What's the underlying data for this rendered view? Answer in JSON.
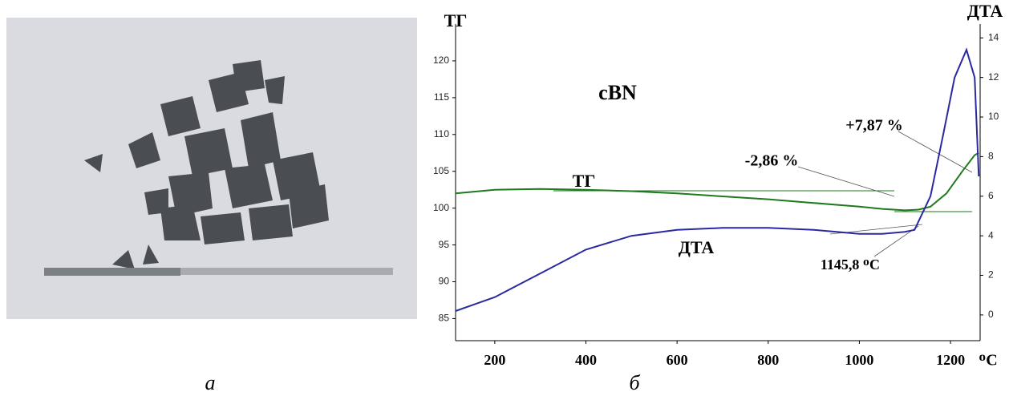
{
  "caption_a": "а",
  "chart_data": {
    "type": "line",
    "title": "cBN",
    "y_label": "ТГ",
    "y2_label": "ДТА",
    "x_unit": "ᴼC",
    "xlim": [
      114,
      1265
    ],
    "xticks": [
      200,
      400,
      600,
      800,
      1000,
      1200
    ],
    "ylim": [
      82,
      125
    ],
    "yticks": [
      85,
      90,
      95,
      100,
      105,
      110,
      115,
      120
    ],
    "y2lim": [
      -1.3,
      14.7
    ],
    "y2ticks": [
      0,
      2,
      4,
      6,
      8,
      10,
      12,
      14
    ],
    "series": [
      {
        "name": "ТГ",
        "color": "#1e7a1e",
        "axis": "y",
        "x": [
          114,
          200,
          300,
          400,
          500,
          600,
          700,
          800,
          900,
          1000,
          1050,
          1100,
          1130,
          1156,
          1191,
          1226,
          1253,
          1262
        ],
        "values": [
          102.0,
          102.5,
          102.6,
          102.5,
          102.3,
          102.0,
          101.6,
          101.2,
          100.7,
          100.2,
          99.9,
          99.7,
          99.8,
          100.2,
          102.0,
          105.0,
          107.2,
          107.5
        ]
      },
      {
        "name": "ДТА",
        "color": "#2a2aa0",
        "axis": "y2",
        "x": [
          114,
          200,
          300,
          400,
          500,
          600,
          700,
          800,
          900,
          950,
          1000,
          1050,
          1100,
          1121,
          1156,
          1183,
          1209,
          1235,
          1253,
          1262
        ],
        "values": [
          0.2,
          0.9,
          2.1,
          3.3,
          4.0,
          4.3,
          4.4,
          4.4,
          4.3,
          4.2,
          4.1,
          4.1,
          4.2,
          4.3,
          6.0,
          9.0,
          12.0,
          13.4,
          12.0,
          7.0
        ]
      }
    ],
    "annotations": [
      "-2,86 %",
      "+7,87 %",
      "1145,8 ᴼC"
    ],
    "caption": "б"
  }
}
